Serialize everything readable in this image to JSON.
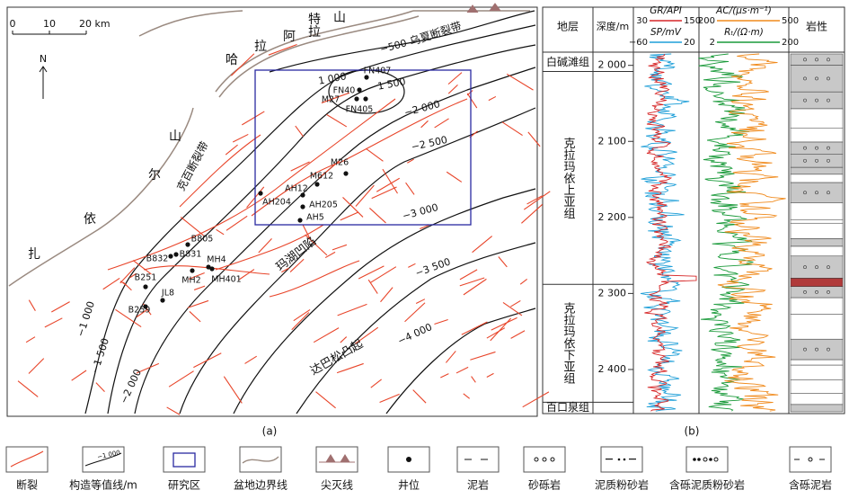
{
  "map": {
    "scale": [
      "0",
      "10",
      "20 km"
    ],
    "north": "N",
    "mountain": [
      "哈",
      "拉",
      "阿",
      "拉",
      "特",
      "山"
    ],
    "zhaier": [
      "扎",
      "依",
      "尔",
      "山"
    ],
    "faults": [
      "乌夏断裂带",
      "克百断裂带"
    ],
    "regions": [
      "玛湖凹陷",
      "达巴松凸起"
    ],
    "contours": [
      "−500",
      "1 000",
      "1 500",
      "−2 000",
      "−2 500",
      "−3 000",
      "−3 500",
      "−4 000",
      "−1 000",
      "−1 500",
      "−2 000"
    ],
    "wells": [
      "FN407",
      "FN40",
      "M27",
      "FN405",
      "M26",
      "M612",
      "AH12",
      "AH204",
      "AH205",
      "AH5",
      "B805",
      "B831",
      "B832",
      "MH4",
      "MH2",
      "MH401",
      "B251",
      "JL8",
      "B259"
    ],
    "caption": "(a)"
  },
  "log": {
    "strata": "地层",
    "depth": "深度/m",
    "lith": "岩性",
    "curves": [
      {
        "name": "GR/API",
        "min": "30",
        "max": "150",
        "color": "#d62728"
      },
      {
        "name": "SP/mV",
        "min": "−60",
        "max": "20",
        "color": "#1f9fd8"
      },
      {
        "name": "AC/(μs·m⁻¹)",
        "min": "200",
        "max": "500",
        "color": "#f08a1c"
      },
      {
        "name": "Rₜ/(Ω·m)",
        "min": "2",
        "max": "200",
        "color": "#1a9a3a"
      }
    ],
    "depth_range": [
      1985,
      2458
    ],
    "depth_ticks": [
      {
        "value": 2000,
        "label": "2 000"
      },
      {
        "value": 2100,
        "label": "2 100"
      },
      {
        "value": 2200,
        "label": "2 200"
      },
      {
        "value": 2300,
        "label": "2 300"
      },
      {
        "value": 2400,
        "label": "2 400"
      }
    ],
    "formations": [
      {
        "name": "白碱滩组",
        "top": 1985,
        "bottom": 2008
      },
      {
        "name": "克拉玛依上亚组",
        "top": 2008,
        "bottom": 2288
      },
      {
        "name": "克拉玛依下亚组",
        "top": 2288,
        "bottom": 2443
      },
      {
        "name": "百口泉组",
        "top": 2443,
        "bottom": 2458
      }
    ],
    "caption": "(b)"
  },
  "legend": [
    "断裂",
    "构造等值线/m",
    "研究区",
    "盆地边界线",
    "尖灭线",
    "井位",
    "泥岩",
    "砂砾岩",
    "泥质粉砂岩",
    "含砾泥质粉砂岩",
    "含砾泥岩"
  ],
  "legend_sample": "−1 000"
}
